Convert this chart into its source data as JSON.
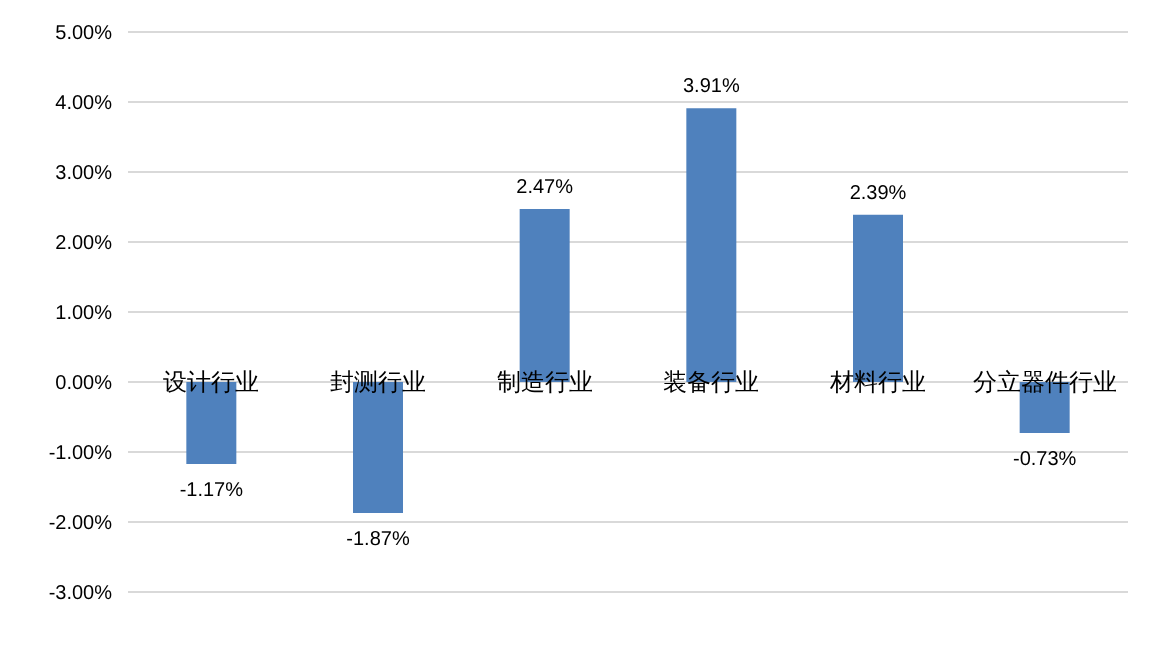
{
  "chart_data": {
    "type": "bar",
    "categories": [
      "设计行业",
      "封测行业",
      "制造行业",
      "装备行业",
      "材料行业",
      "分立器件行业"
    ],
    "values": [
      -1.17,
      -1.87,
      2.47,
      3.91,
      2.39,
      -0.73
    ],
    "value_labels": [
      "-1.17%",
      "-1.87%",
      "2.47%",
      "3.91%",
      "2.39%",
      "-0.73%"
    ],
    "color": "#4f81bd",
    "ylim": [
      -3,
      5
    ],
    "yticks": [
      {
        "value": -3,
        "label": "-3.00%"
      },
      {
        "value": -2,
        "label": "-2.00%"
      },
      {
        "value": -1,
        "label": "-1.00%"
      },
      {
        "value": 0,
        "label": "0.00%"
      },
      {
        "value": 1,
        "label": "1.00%"
      },
      {
        "value": 2,
        "label": "2.00%"
      },
      {
        "value": 3,
        "label": "3.00%"
      },
      {
        "value": 4,
        "label": "4.00%"
      },
      {
        "value": 5,
        "label": "5.00%"
      }
    ],
    "grid": "y"
  }
}
